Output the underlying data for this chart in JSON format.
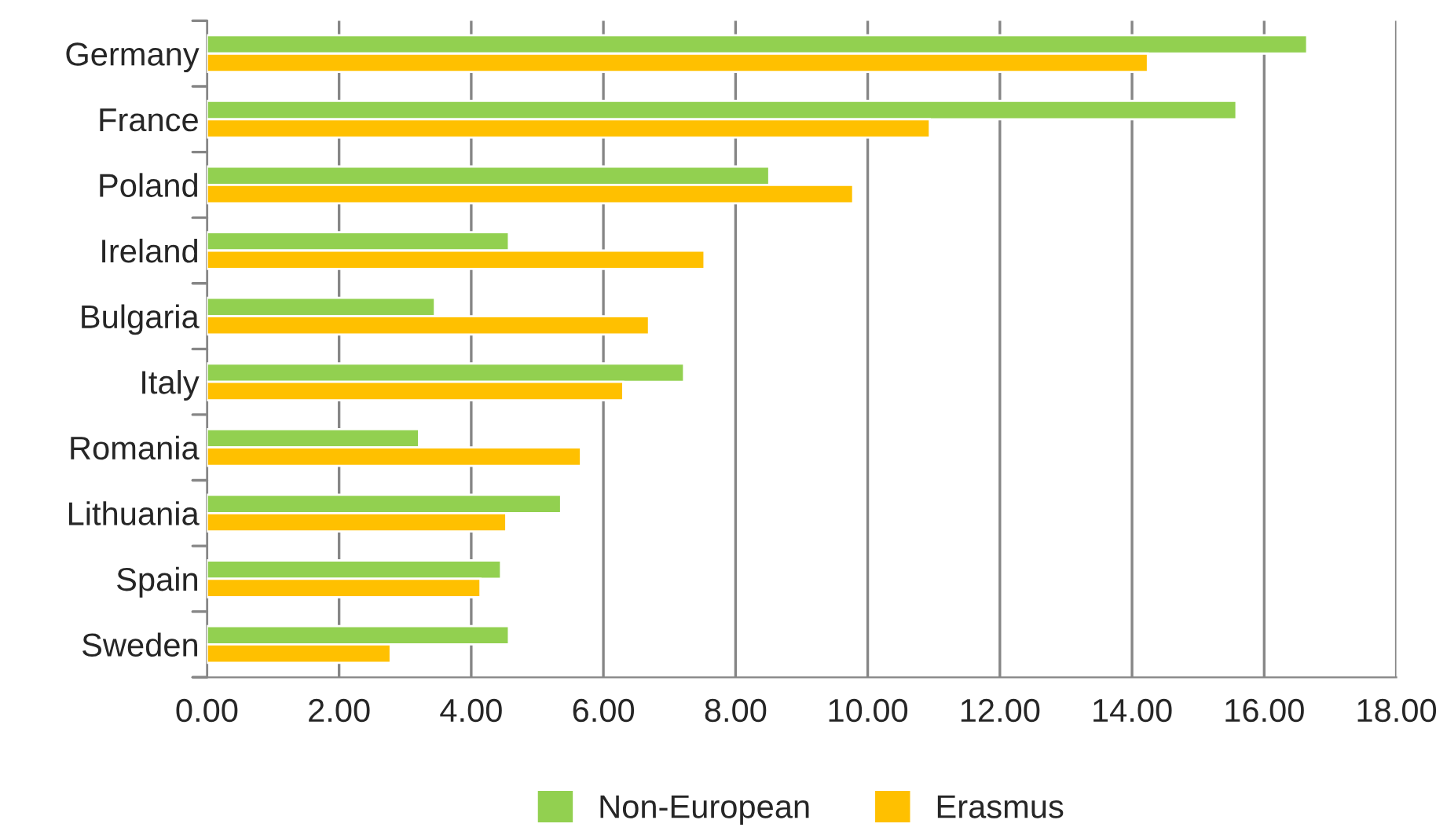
{
  "chart_data": {
    "type": "bar",
    "orientation": "horizontal",
    "categories": [
      "Germany",
      "France",
      "Poland",
      "Ireland",
      "Bulgaria",
      "Italy",
      "Romania",
      "Lithuania",
      "Spain",
      "Sweden"
    ],
    "series": [
      {
        "name": "Non-European",
        "color": "#92d050",
        "values": [
          16.65,
          15.58,
          8.51,
          4.57,
          3.45,
          7.22,
          3.21,
          5.36,
          4.45,
          4.57
        ]
      },
      {
        "name": "Erasmus",
        "color": "#ffc000",
        "values": [
          14.24,
          10.94,
          9.78,
          7.53,
          6.69,
          6.3,
          5.66,
          4.53,
          4.14,
          2.78
        ]
      }
    ],
    "xlim": [
      0,
      18
    ],
    "xticks": [
      {
        "value": 0,
        "label": "0.00"
      },
      {
        "value": 2,
        "label": "2.00"
      },
      {
        "value": 4,
        "label": "4.00"
      },
      {
        "value": 6,
        "label": "6.00"
      },
      {
        "value": 8,
        "label": "8.00"
      },
      {
        "value": 10,
        "label": "10.00"
      },
      {
        "value": 12,
        "label": "12.00"
      },
      {
        "value": 14,
        "label": "14.00"
      },
      {
        "value": 16,
        "label": "16.00"
      },
      {
        "value": 18,
        "label": "18.00"
      }
    ],
    "grid": "x",
    "legend": "bottom"
  }
}
